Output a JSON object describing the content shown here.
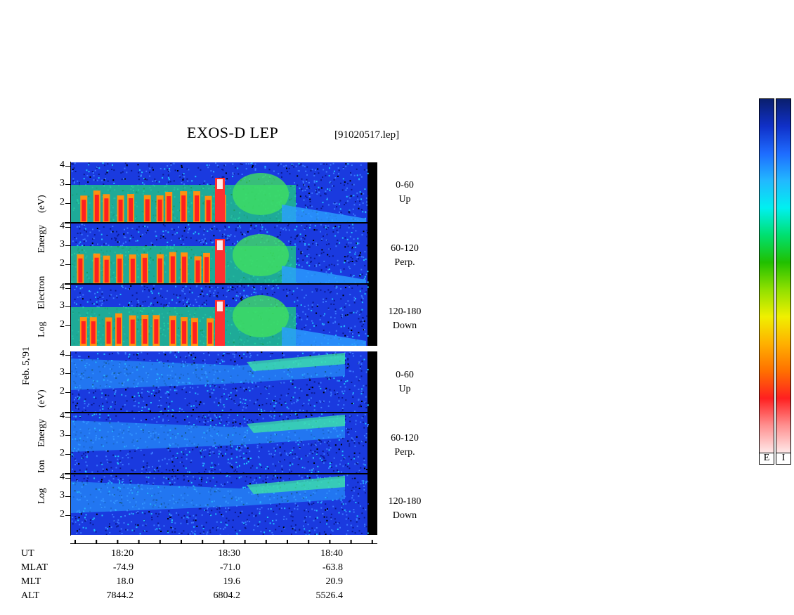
{
  "header": {
    "title": "EXOS-D LEP",
    "file": "[91020517.lep]"
  },
  "side_label": "Feb. 5,'91",
  "electron_block": {
    "ylabel_words": [
      "Log",
      "Electron",
      "Energy",
      "(eV)"
    ],
    "panels": [
      {
        "range": "0-60",
        "direction": "Up"
      },
      {
        "range": "60-120",
        "direction": "Perp."
      },
      {
        "range": "120-180",
        "direction": "Down"
      }
    ]
  },
  "ion_block": {
    "ylabel_words": [
      "Log",
      "Ion",
      "Energy",
      "(eV)"
    ],
    "panels": [
      {
        "range": "0-60",
        "direction": "Up"
      },
      {
        "range": "60-120",
        "direction": "Perp."
      },
      {
        "range": "120-180",
        "direction": "Down"
      }
    ]
  },
  "y_ticks": [
    "4",
    "3",
    "2"
  ],
  "orbit": {
    "row_labels": [
      "UT",
      "MLAT",
      "MLT",
      "ALT"
    ],
    "columns": [
      {
        "ut": "18:20",
        "mlat": "-74.9",
        "mlt": "18.0",
        "alt": "7844.2"
      },
      {
        "ut": "18:30",
        "mlat": "-71.0",
        "mlt": "19.6",
        "alt": "6804.2"
      },
      {
        "ut": "18:40",
        "mlat": "-63.8",
        "mlt": "20.9",
        "alt": "5526.4"
      }
    ]
  },
  "colorbars": {
    "labels": [
      "E",
      "I"
    ],
    "colors": [
      "#0a1f6e",
      "#1030c8",
      "#1e6cff",
      "#22b8ff",
      "#00f0f0",
      "#00e070",
      "#20c000",
      "#90e000",
      "#f0f000",
      "#ffb000",
      "#ff7000",
      "#ff2020",
      "#ff9090",
      "#ffe8e8"
    ]
  },
  "chart_data": {
    "type": "heatmap",
    "title": "EXOS-D LEP",
    "xlabel": "UT",
    "ylabel": "Log Energy (eV)",
    "x_ticks": [
      "18:20",
      "18:30",
      "18:40"
    ],
    "y_ticks": [
      2,
      3,
      4
    ],
    "ylim": [
      1,
      4.1
    ],
    "panels": [
      {
        "species": "Electron",
        "range": "0-60",
        "direction": "Up"
      },
      {
        "species": "Electron",
        "range": "60-120",
        "direction": "Perp."
      },
      {
        "species": "Electron",
        "range": "120-180",
        "direction": "Down"
      },
      {
        "species": "Ion",
        "range": "0-60",
        "direction": "Up"
      },
      {
        "species": "Ion",
        "range": "60-120",
        "direction": "Perp."
      },
      {
        "species": "Ion",
        "range": "120-180",
        "direction": "Down"
      }
    ],
    "orbit": {
      "UT": [
        "18:20",
        "18:30",
        "18:40"
      ],
      "MLAT": [
        -74.9,
        -71.0,
        -63.8
      ],
      "MLT": [
        18.0,
        19.6,
        20.9
      ],
      "ALT": [
        7844.2,
        6804.2,
        5526.4
      ]
    }
  }
}
